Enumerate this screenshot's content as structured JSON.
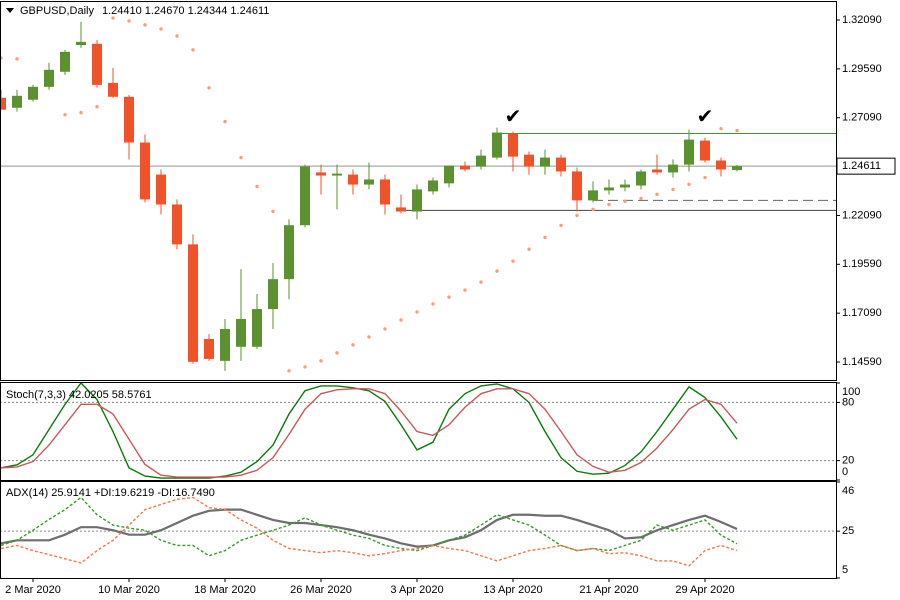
{
  "chart_data": [
    {
      "type": "candlestick",
      "title": "GBPUSD,Daily",
      "ohlc_text": "1.24410 1.24670 1.24344 1.24611",
      "categories": [
        null,
        null,
        "2 Mar 2020",
        null,
        null,
        null,
        null,
        null,
        "10 Mar 2020",
        null,
        null,
        null,
        null,
        null,
        "18 Mar 2020",
        null,
        null,
        null,
        null,
        null,
        "26 Mar 2020",
        null,
        null,
        null,
        null,
        null,
        "3 Apr 2020",
        null,
        null,
        null,
        null,
        null,
        "13 Apr 2020",
        null,
        null,
        null,
        null,
        null,
        "21 Apr 2020",
        null,
        null,
        null,
        null,
        null,
        "29 Apr 2020",
        null,
        null
      ],
      "open": [
        1.2811,
        1.276,
        1.2801,
        1.2867,
        1.2944,
        1.3081,
        1.3087,
        1.2887,
        1.2816,
        1.2582,
        1.2418,
        1.2265,
        1.2061,
        1.1577,
        1.1465,
        1.1537,
        1.1537,
        1.173,
        1.1883,
        1.2159,
        1.2429,
        1.2413,
        1.2418,
        1.2367,
        1.2393,
        1.225,
        1.2229,
        1.2332,
        1.2373,
        1.2464,
        1.2459,
        1.2505,
        1.2628,
        1.252,
        1.2459,
        1.2505,
        1.2434,
        1.2286,
        1.2337,
        1.2352,
        1.2362,
        1.2444,
        1.2429,
        1.2469,
        1.2592,
        1.249,
        1.2441
      ],
      "high": [
        1.2852,
        1.2852,
        1.2877,
        1.299,
        1.3056,
        1.3199,
        1.3107,
        1.2964,
        1.2826,
        1.2623,
        1.2444,
        1.2291,
        1.2112,
        1.1602,
        1.1679,
        1.1934,
        1.1807,
        1.1965,
        1.2189,
        1.2469,
        1.2469,
        1.2469,
        1.2444,
        1.248,
        1.2418,
        1.2316,
        1.2367,
        1.2403,
        1.2464,
        1.2485,
        1.2546,
        1.2658,
        1.2638,
        1.2536,
        1.2546,
        1.252,
        1.2454,
        1.2383,
        1.2393,
        1.2393,
        1.2444,
        1.252,
        1.2495,
        1.2648,
        1.2607,
        1.2505,
        1.2467
      ],
      "low": [
        1.275,
        1.274,
        1.2791,
        1.2852,
        1.2928,
        1.3066,
        1.2862,
        1.2811,
        1.2495,
        1.2276,
        1.2214,
        1.2036,
        1.145,
        1.1465,
        1.1414,
        1.1465,
        1.1526,
        1.1628,
        1.1781,
        1.2148,
        1.2316,
        1.224,
        1.2316,
        1.2342,
        1.2214,
        1.2219,
        1.2189,
        1.2316,
        1.2352,
        1.2434,
        1.2444,
        1.2495,
        1.2434,
        1.2418,
        1.2418,
        1.2408,
        1.2229,
        1.2276,
        1.2316,
        1.2332,
        1.2342,
        1.2418,
        1.2403,
        1.2434,
        1.248,
        1.2408,
        1.24344
      ],
      "close": [
        1.275,
        1.2821,
        1.2867,
        1.2954,
        1.3046,
        1.3097,
        1.2877,
        1.2816,
        1.2582,
        1.2291,
        1.2265,
        1.2061,
        1.146,
        1.1475,
        1.1628,
        1.1679,
        1.173,
        1.1883,
        1.2159,
        1.2459,
        1.2413,
        1.2423,
        1.2367,
        1.2393,
        1.2265,
        1.2229,
        1.2342,
        1.2388,
        1.2464,
        1.2444,
        1.2515,
        1.2633,
        1.251,
        1.2459,
        1.2505,
        1.2434,
        1.2286,
        1.2337,
        1.2352,
        1.2367,
        1.2434,
        1.2429,
        1.2469,
        1.2597,
        1.249,
        1.2444,
        1.24611
      ],
      "up_color": "#5b922f",
      "down_color": "#f0522a",
      "sar": [
        1.3015,
        1.301,
        null,
        null,
        1.2724,
        1.2735,
        1.2765,
        1.3219,
        1.3204,
        1.3184,
        1.3163,
        1.3127,
        1.3056,
        1.2862,
        1.2689,
        1.2505,
        1.2357,
        1.223,
        1.1414,
        1.1434,
        1.1465,
        1.1506,
        1.1547,
        1.1587,
        1.1628,
        1.1674,
        1.1715,
        1.1756,
        1.1791,
        1.1827,
        1.1868,
        1.1924,
        1.1975,
        1.2036,
        1.2097,
        1.2158,
        1.2209,
        1.224,
        1.2265,
        1.2281,
        1.2296,
        1.2317,
        1.2342,
        1.2368,
        1.2403,
        1.2653,
        1.2643
      ],
      "sar_color": "#f4a07c",
      "last_price_label": "1.24611",
      "hlines": [
        {
          "value": 1.2628,
          "color": "#3a9a2a",
          "from": 31,
          "style": "solid"
        },
        {
          "value": 1.2235,
          "color": "#444444",
          "from": 25,
          "style": "solid"
        },
        {
          "value": 1.2286,
          "color": "#666666",
          "from": 37,
          "style": "dashed"
        }
      ],
      "annotations": [
        {
          "at": 32,
          "y": 1.2709,
          "label": "✔"
        },
        {
          "at": 44,
          "y": 1.2709,
          "label": "✔"
        }
      ],
      "ylim": [
        1.1367,
        1.3301
      ],
      "yticks": [
        {
          "value": 1.3209,
          "label": "1.32090"
        },
        {
          "value": 1.2959,
          "label": "1.29590"
        },
        {
          "value": 1.2709,
          "label": "1.27090"
        },
        {
          "value": 1.2209,
          "label": "1.22090"
        },
        {
          "value": 1.1959,
          "label": "1.19590"
        },
        {
          "value": 1.1709,
          "label": "1.17090"
        },
        {
          "value": 1.1459,
          "label": "1.14590"
        }
      ],
      "grid": false
    },
    {
      "type": "line",
      "title": "Stoch(7,3,3) 42.0205 58.5761",
      "series": [
        {
          "color": "#0b7a0b",
          "style": "solid",
          "values": [
            12.5,
            15.6,
            26,
            52,
            78,
            100,
            83,
            50,
            12.5,
            4,
            2,
            2,
            2,
            2,
            4,
            8,
            19,
            36,
            68,
            92,
            97,
            97,
            95,
            92,
            81,
            57,
            31,
            39,
            73,
            89,
            97,
            99,
            94,
            80,
            50,
            23,
            9,
            6,
            7,
            15,
            29,
            50,
            73,
            96,
            85,
            65,
            42.0205
          ]
        },
        {
          "color": "#c9585a",
          "style": "solid",
          "values": [
            12.5,
            13.5,
            19,
            36,
            57,
            78,
            78,
            68,
            42,
            16,
            5,
            3,
            3,
            3,
            3,
            5,
            10,
            23,
            47,
            73,
            89,
            93,
            94,
            94,
            89,
            71,
            50,
            46,
            57,
            75,
            89,
            94,
            94,
            89,
            73,
            50,
            26,
            14,
            8,
            10,
            18,
            33,
            52,
            73,
            83,
            78,
            58.5761
          ]
        }
      ],
      "ylim": [
        0,
        100
      ],
      "yticks": [
        100,
        80,
        20,
        0
      ],
      "grid": true
    },
    {
      "type": "line",
      "title": "ADX(14) 25.9141 +DI:19.6219 -DI:16.7490",
      "series": [
        {
          "color": "#6e6e6e",
          "style": "solid",
          "values": [
            19.8,
            21.1,
            21.1,
            21.1,
            23.5,
            26.7,
            26.7,
            25.4,
            23.5,
            23.5,
            25.4,
            28.5,
            31.6,
            33.7,
            34.2,
            34.2,
            32.0,
            29.8,
            28.5,
            28.5,
            27.6,
            26.7,
            25.4,
            23.5,
            21.9,
            19.8,
            18.4,
            18.9,
            21.1,
            22.4,
            25.4,
            29.8,
            32.0,
            32.0,
            31.6,
            31.6,
            29.8,
            27.6,
            25.4,
            21.9,
            22.4,
            25.4,
            27.6,
            29.8,
            31.6,
            28.9,
            25.9141
          ]
        },
        {
          "color": "#3a9a2a",
          "style": "dashed",
          "values": [
            18.9,
            21.1,
            25.4,
            30,
            34.2,
            39.4,
            32.0,
            27.6,
            26.3,
            25.4,
            21.1,
            18.9,
            18.9,
            14.5,
            16.7,
            21.1,
            23.3,
            25.4,
            27.6,
            30.7,
            27.6,
            25.4,
            23.3,
            21.9,
            18.9,
            17.6,
            16.7,
            18.9,
            21.1,
            23.3,
            27.6,
            32.0,
            29.8,
            27.6,
            23.3,
            18.9,
            16.7,
            17.6,
            16.7,
            18.9,
            21.1,
            27.6,
            25.4,
            27.6,
            29.8,
            23.3,
            19.6219
          ]
        },
        {
          "color": "#f07a50",
          "style": "dashed",
          "values": [
            17.6,
            18.9,
            16.7,
            15,
            13.2,
            11.4,
            16.7,
            21.1,
            27.6,
            34.2,
            36.4,
            38.6,
            39.4,
            35.1,
            34.2,
            29.8,
            26.3,
            21.1,
            17.6,
            16.7,
            15.8,
            16.7,
            15.8,
            14.5,
            15.4,
            16.7,
            17.6,
            18.9,
            17.6,
            16.7,
            14.5,
            12.3,
            14.5,
            16.7,
            17.6,
            18.9,
            16.7,
            17.6,
            15.4,
            15.8,
            14.5,
            12.3,
            12.3,
            10.2,
            16.7,
            18.9,
            16.749
          ]
        }
      ],
      "ylim": [
        5,
        46
      ],
      "yticks": [
        46,
        25,
        5
      ],
      "grid": true
    }
  ]
}
